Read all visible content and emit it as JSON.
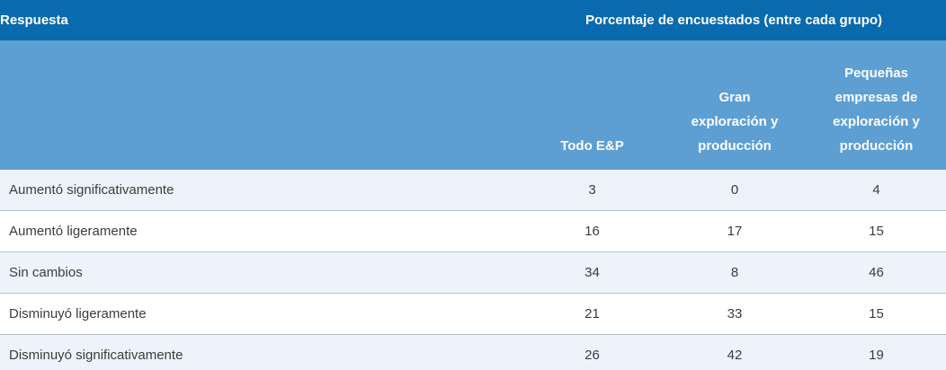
{
  "table": {
    "top_header": {
      "response_label": "Respuesta",
      "group_label": "Porcentaje de encuestados (entre cada grupo)"
    },
    "columns": [
      "Todo E&P",
      "Gran exploración y producción",
      "Pequeñas empresas de exploración y producción"
    ],
    "rows": [
      {
        "label": "Aumentó significativamente",
        "values": [
          "3",
          "0",
          "4"
        ]
      },
      {
        "label": "Aumentó ligeramente",
        "values": [
          "16",
          "17",
          "15"
        ]
      },
      {
        "label": "Sin cambios",
        "values": [
          "34",
          "8",
          "46"
        ]
      },
      {
        "label": "Disminuyó ligeramente",
        "values": [
          "21",
          "33",
          "15"
        ]
      },
      {
        "label": "Disminuyó significativamente",
        "values": [
          "26",
          "42",
          "19"
        ]
      }
    ],
    "colors": {
      "header_bg": "#0a6aae",
      "subheader_bg": "#5d9fd3",
      "row_alt_bg": "#edf3fa",
      "row_bg": "#ffffff",
      "divider": "#b5c0ca",
      "bottom_bar": "#5d9fd3",
      "header_text": "#ffffff",
      "body_text": "#3c3c3c"
    }
  },
  "chart_data": {
    "type": "table",
    "title": "Porcentaje de encuestados (entre cada grupo)",
    "columns": [
      "Respuesta",
      "Todo E&P",
      "Gran exploración y producción",
      "Pequeñas empresas de exploración y producción"
    ],
    "rows": [
      [
        "Aumentó significativamente",
        3,
        0,
        4
      ],
      [
        "Aumentó ligeramente",
        16,
        17,
        15
      ],
      [
        "Sin cambios",
        34,
        8,
        46
      ],
      [
        "Disminuyó ligeramente",
        21,
        33,
        15
      ],
      [
        "Disminuyó significativamente",
        26,
        42,
        19
      ]
    ],
    "legend_position": "none",
    "grid": false
  }
}
